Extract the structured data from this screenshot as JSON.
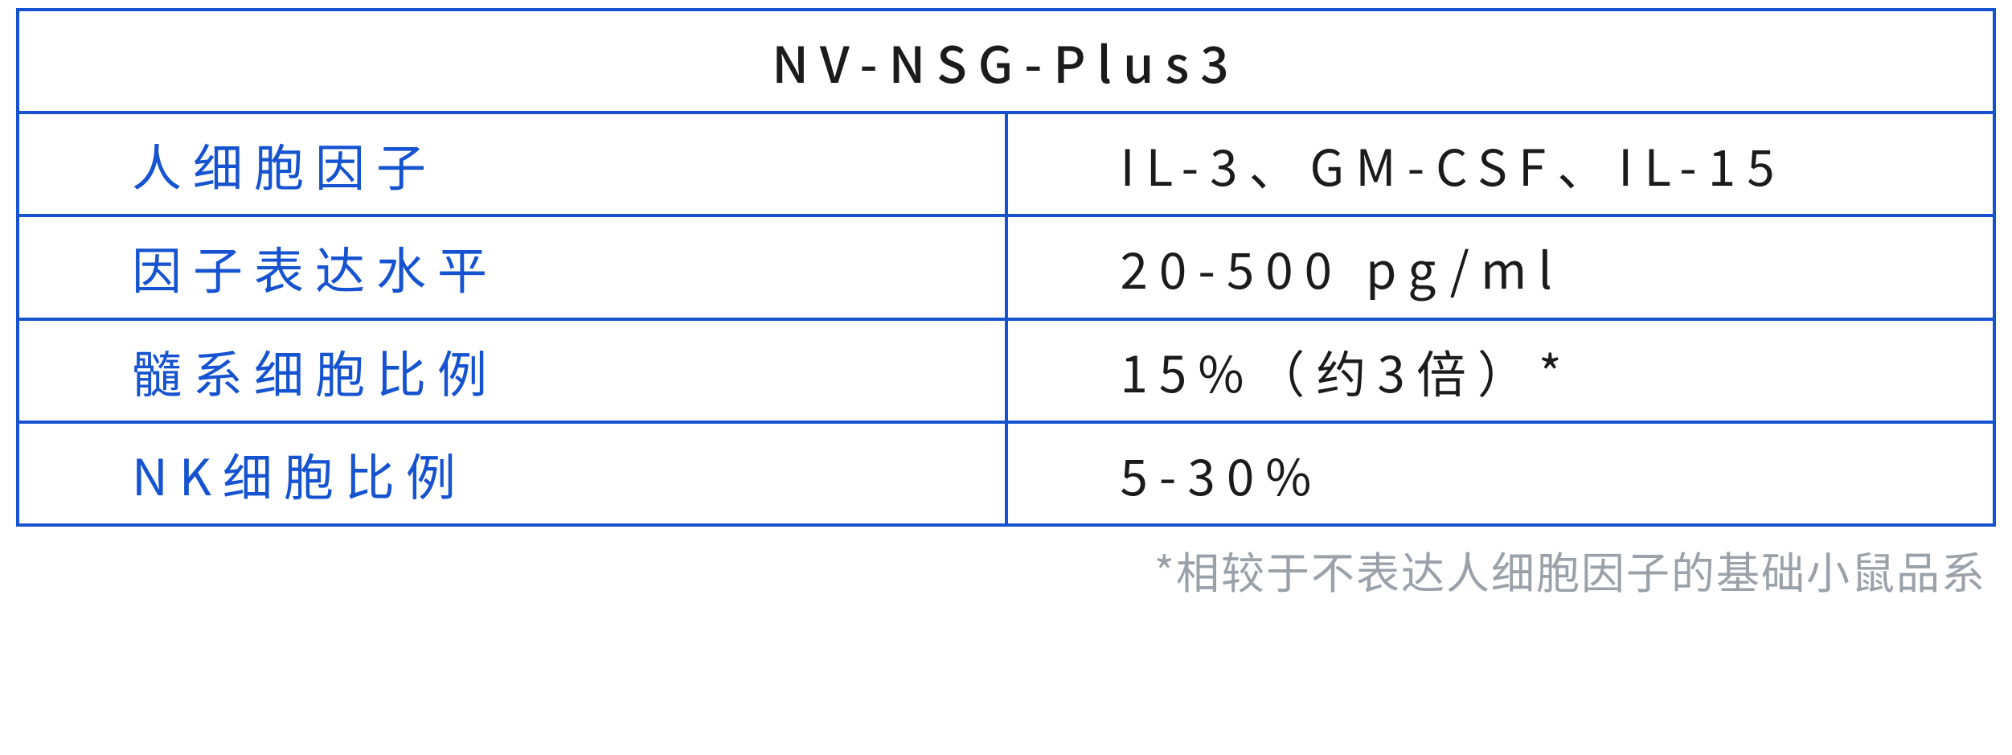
{
  "colors": {
    "border": "#1653d0",
    "title": "#1b1b1b",
    "label": "#1653d0",
    "value": "#1b1b1b",
    "footnote": "#9aa1a9"
  },
  "table": {
    "title": "NV-NSG-Plus3",
    "rows": [
      {
        "label": "人细胞因子",
        "value": "IL-3、GM-CSF、IL-15"
      },
      {
        "label": "因子表达水平",
        "value": "20-500 pg/ml"
      },
      {
        "label": "髓系细胞比例",
        "value": "15%（约3倍）*"
      },
      {
        "label": "NK细胞比例",
        "value": "5-30%"
      }
    ]
  },
  "footnote": "*相较于不表达人细胞因子的基础小鼠品系"
}
